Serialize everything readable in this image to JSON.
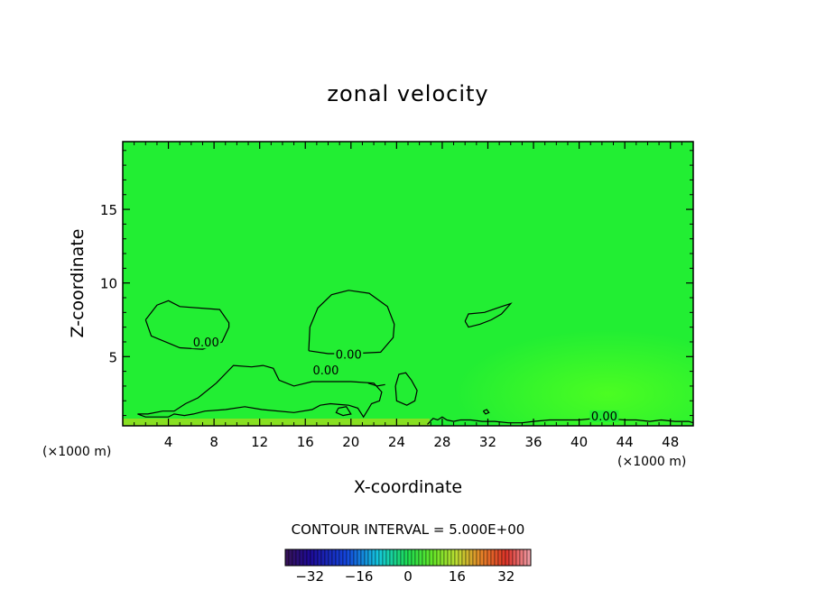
{
  "chart_data": {
    "type": "contour",
    "title": "zonal velocity",
    "xlabel": "X-coordinate",
    "ylabel": "Z-coordinate",
    "x_unit": "(×1000 m)",
    "x_unit_right": "(×1000 m)",
    "xlim": [
      0,
      50
    ],
    "ylim": [
      0.3,
      19.6
    ],
    "x_ticks": [
      4,
      8,
      12,
      16,
      20,
      24,
      28,
      32,
      36,
      40,
      44,
      48
    ],
    "y_ticks": [
      5,
      10,
      15
    ],
    "contour_interval_text": "CONTOUR INTERVAL = 5.000E+00",
    "contour_labels": [
      {
        "text": "0.00",
        "x": 7.3,
        "z": 5.8
      },
      {
        "text": "0.00",
        "x": 19.8,
        "z": 5.0
      },
      {
        "text": "0.00",
        "x": 17.8,
        "z": 3.9
      },
      {
        "text": "0.00",
        "x": 42.2,
        "z": 0.8
      }
    ],
    "contours": [
      {
        "level": 0,
        "points": [
          [
            2.0,
            7.5
          ],
          [
            3.0,
            8.5
          ],
          [
            4.0,
            8.8
          ],
          [
            5.0,
            8.4
          ],
          [
            8.5,
            8.2
          ],
          [
            9.3,
            7.3
          ],
          [
            9.3,
            7.0
          ],
          [
            8.7,
            6.0
          ],
          [
            7.0,
            5.5
          ],
          [
            5.0,
            5.6
          ],
          [
            2.5,
            6.4
          ],
          [
            2.0,
            7.5
          ]
        ]
      },
      {
        "level": 0,
        "points": [
          [
            16.3,
            5.4
          ],
          [
            16.4,
            7.0
          ],
          [
            17.1,
            8.3
          ],
          [
            18.3,
            9.2
          ],
          [
            19.8,
            9.5
          ],
          [
            21.6,
            9.3
          ],
          [
            23.2,
            8.4
          ],
          [
            23.8,
            7.2
          ],
          [
            23.7,
            6.3
          ],
          [
            22.6,
            5.3
          ],
          [
            20.0,
            5.2
          ],
          [
            18.0,
            5.2
          ],
          [
            16.3,
            5.4
          ]
        ]
      },
      {
        "level": 0,
        "points": [
          [
            30.0,
            7.4
          ],
          [
            30.3,
            7.9
          ],
          [
            31.7,
            8.0
          ],
          [
            33.2,
            8.4
          ],
          [
            34.0,
            8.6
          ],
          [
            33.2,
            7.9
          ],
          [
            32.3,
            7.5
          ],
          [
            31.3,
            7.2
          ],
          [
            30.3,
            7.0
          ],
          [
            30.0,
            7.4
          ]
        ]
      },
      {
        "level": 0,
        "points": [
          [
            23.9,
            3.0
          ],
          [
            24.2,
            3.8
          ],
          [
            24.8,
            3.9
          ],
          [
            25.3,
            3.4
          ],
          [
            25.8,
            2.7
          ],
          [
            25.6,
            2.0
          ],
          [
            24.9,
            1.7
          ],
          [
            24.0,
            2.0
          ],
          [
            23.9,
            3.0
          ]
        ]
      },
      {
        "level": 0,
        "points": [
          [
            18.9,
            1.5
          ],
          [
            19.6,
            1.6
          ],
          [
            20.0,
            1.1
          ],
          [
            19.3,
            1.0
          ],
          [
            18.7,
            1.2
          ],
          [
            18.9,
            1.5
          ]
        ]
      },
      {
        "level": 0,
        "points": [
          [
            31.6,
            1.3
          ],
          [
            31.9,
            1.4
          ],
          [
            32.1,
            1.2
          ],
          [
            31.8,
            1.1
          ],
          [
            31.6,
            1.3
          ]
        ]
      },
      {
        "level": 0,
        "points": [
          [
            1.3,
            1.1
          ],
          [
            2.2,
            1.1
          ],
          [
            3.5,
            1.3
          ],
          [
            4.5,
            1.3
          ],
          [
            5.5,
            1.8
          ],
          [
            6.6,
            2.2
          ],
          [
            8.2,
            3.2
          ],
          [
            9.7,
            4.4
          ],
          [
            11.3,
            4.3
          ],
          [
            12.3,
            4.4
          ],
          [
            13.2,
            4.2
          ],
          [
            13.7,
            3.4
          ],
          [
            15.0,
            3.0
          ],
          [
            16.6,
            3.3
          ],
          [
            20.0,
            3.3
          ],
          [
            22.0,
            3.2
          ],
          [
            22.7,
            2.6
          ],
          [
            22.5,
            2.0
          ],
          [
            21.8,
            1.8
          ],
          [
            21.5,
            1.4
          ],
          [
            21.1,
            0.9
          ],
          [
            20.6,
            1.5
          ],
          [
            19.8,
            1.7
          ],
          [
            18.2,
            1.8
          ],
          [
            17.3,
            1.7
          ],
          [
            16.6,
            1.4
          ],
          [
            15.0,
            1.2
          ],
          [
            12.2,
            1.4
          ],
          [
            10.7,
            1.6
          ],
          [
            9.0,
            1.4
          ],
          [
            7.2,
            1.3
          ],
          [
            6.2,
            1.1
          ],
          [
            5.4,
            1.0
          ],
          [
            4.5,
            1.1
          ],
          [
            4.0,
            0.9
          ],
          [
            2.0,
            0.9
          ],
          [
            1.3,
            1.1
          ]
        ]
      },
      {
        "level": 0,
        "points": [
          [
            26.7,
            0.4
          ],
          [
            27.2,
            0.8
          ],
          [
            27.6,
            0.7
          ],
          [
            28.0,
            0.9
          ],
          [
            28.4,
            0.7
          ],
          [
            29.0,
            0.6
          ],
          [
            29.6,
            0.7
          ],
          [
            30.5,
            0.7
          ],
          [
            31.5,
            0.6
          ],
          [
            32.6,
            0.6
          ],
          [
            33.8,
            0.5
          ],
          [
            35.0,
            0.5
          ],
          [
            36.0,
            0.6
          ],
          [
            37.4,
            0.7
          ],
          [
            38.6,
            0.7
          ],
          [
            40.0,
            0.7
          ],
          [
            41.4,
            0.8
          ],
          [
            42.2,
            0.8
          ],
          [
            44.0,
            0.7
          ],
          [
            45.0,
            0.7
          ],
          [
            46.2,
            0.6
          ],
          [
            47.2,
            0.7
          ],
          [
            48.4,
            0.6
          ],
          [
            49.6,
            0.6
          ],
          [
            50.0,
            0.5
          ]
        ]
      },
      {
        "level": 0,
        "points": [
          [
            23.0,
            3.1
          ],
          [
            22.3,
            3.0
          ],
          [
            21.5,
            3.2
          ]
        ]
      }
    ],
    "colorbar": {
      "range": [
        -40,
        40
      ],
      "tick_labels": [
        "-32",
        "-16",
        "0",
        "16",
        "32"
      ],
      "tick_values": [
        -32,
        -16,
        0,
        16,
        32
      ]
    },
    "colors": {
      "field_main": "#22ee33",
      "field_light": "#44ff22",
      "field_bottom": "#88e022"
    }
  }
}
